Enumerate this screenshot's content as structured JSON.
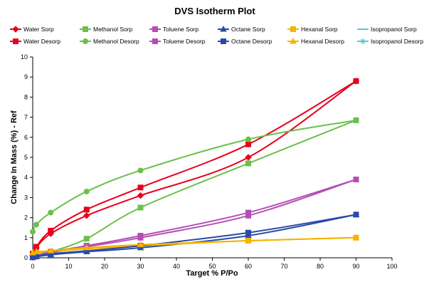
{
  "chart_data": {
    "type": "line",
    "title": "DVS Isotherm Plot",
    "xlabel": "Target % P/Po",
    "ylabel": "Change In Mass (%) - Ref",
    "xlim": [
      0,
      100
    ],
    "ylim": [
      0,
      10
    ],
    "x_ticks": [
      0,
      10,
      20,
      30,
      40,
      50,
      60,
      70,
      80,
      90,
      100
    ],
    "y_ticks": [
      0,
      1,
      2,
      3,
      4,
      5,
      6,
      7,
      8,
      9,
      10
    ],
    "grid": false,
    "legend_position": "top",
    "series": [
      {
        "name": "Water Sorp",
        "color": "#e8001c",
        "marker": "diamond",
        "x": [
          0,
          1,
          5,
          15,
          30,
          60,
          90
        ],
        "y": [
          0.1,
          0.5,
          1.2,
          2.1,
          3.1,
          5.0,
          8.8
        ]
      },
      {
        "name": "Methanol Sorp",
        "color": "#6ac04b",
        "marker": "square",
        "x": [
          0,
          1,
          5,
          15,
          30,
          60,
          90
        ],
        "y": [
          0.05,
          0.15,
          0.3,
          0.95,
          2.5,
          4.7,
          6.85
        ]
      },
      {
        "name": "Toluene Sorp",
        "color": "#b44eb4",
        "marker": "square",
        "x": [
          0,
          1,
          5,
          15,
          30,
          60,
          90
        ],
        "y": [
          0.02,
          0.08,
          0.25,
          0.55,
          1.0,
          2.1,
          3.9
        ]
      },
      {
        "name": "Octane Sorp",
        "color": "#2a4aa8",
        "marker": "triangle",
        "x": [
          0,
          1,
          5,
          15,
          30,
          60,
          90
        ],
        "y": [
          0.02,
          0.05,
          0.15,
          0.3,
          0.5,
          1.1,
          2.15
        ]
      },
      {
        "name": "Hexanal Sorp",
        "color": "#f5b400",
        "marker": "square",
        "x": [
          0,
          1,
          5,
          15,
          30,
          60,
          90
        ],
        "y": [
          0.2,
          0.25,
          0.3,
          0.45,
          0.6,
          0.85,
          1.0
        ]
      },
      {
        "name": "Isopropanol Sorp",
        "color": "#5bc8d6",
        "marker": "line",
        "x": [],
        "y": []
      },
      {
        "name": "Water Desorp",
        "color": "#e8001c",
        "marker": "square",
        "x": [
          0,
          1,
          5,
          15,
          30,
          60,
          90
        ],
        "y": [
          0.2,
          0.55,
          1.35,
          2.4,
          3.5,
          5.65,
          8.8
        ]
      },
      {
        "name": "Methanol Desorp",
        "color": "#6ac04b",
        "marker": "circle",
        "x": [
          0,
          1,
          5,
          15,
          30,
          60,
          90
        ],
        "y": [
          1.3,
          1.65,
          2.25,
          3.3,
          4.35,
          5.9,
          6.85
        ]
      },
      {
        "name": "Toluene Desorp",
        "color": "#b44eb4",
        "marker": "square",
        "x": [
          0,
          1,
          5,
          15,
          30,
          60,
          90
        ],
        "y": [
          0.05,
          0.1,
          0.3,
          0.6,
          1.1,
          2.25,
          3.9
        ]
      },
      {
        "name": "Octane Desorp",
        "color": "#2a4aa8",
        "marker": "square",
        "x": [
          0,
          1,
          5,
          15,
          30,
          60,
          90
        ],
        "y": [
          0.03,
          0.07,
          0.2,
          0.35,
          0.6,
          1.25,
          2.15
        ]
      },
      {
        "name": "Hexanal Desorp",
        "color": "#f5b400",
        "marker": "triangle",
        "x": [
          0,
          1,
          5,
          15,
          30,
          60,
          90
        ],
        "y": [
          0.25,
          0.3,
          0.35,
          0.5,
          0.65,
          0.85,
          1.0
        ]
      },
      {
        "name": "Isopropanol Desorp",
        "color": "#5bc8d6",
        "marker": "star",
        "x": [],
        "y": []
      }
    ]
  }
}
